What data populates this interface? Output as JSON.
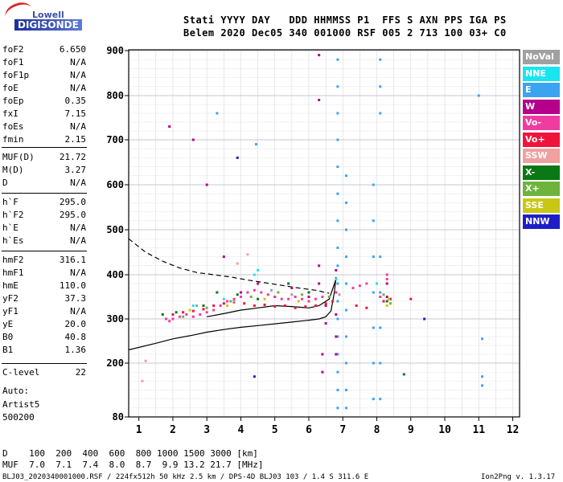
{
  "logo": {
    "top": "Lowell",
    "bottom": "DIGISONDE"
  },
  "header": {
    "line1": "Stati YYYY DAY   DDD HHMMSS P1  FFS S AXN PPS IGA PS",
    "line2": "Belem 2020 Dec05 340 001000 RSF 005 2 713 100 03+ C0"
  },
  "params": [
    {
      "k": "foF2",
      "v": "6.650"
    },
    {
      "k": "foF1",
      "v": "N/A"
    },
    {
      "k": "foF1p",
      "v": "N/A"
    },
    {
      "k": "foE",
      "v": "N/A"
    },
    {
      "k": "foEp",
      "v": "0.35"
    },
    {
      "k": "fxI",
      "v": "7.15"
    },
    {
      "k": "foEs",
      "v": "N/A"
    },
    {
      "k": "fmin",
      "v": "2.15"
    },
    {
      "k": "MUF(D)",
      "v": "21.72"
    },
    {
      "k": "M(D)",
      "v": "3.27"
    },
    {
      "k": "D",
      "v": "N/A"
    },
    {
      "k": "h`F",
      "v": "295.0"
    },
    {
      "k": "h`F2",
      "v": "295.0"
    },
    {
      "k": "h`E",
      "v": "N/A"
    },
    {
      "k": "h`Es",
      "v": "N/A"
    },
    {
      "k": "hmF2",
      "v": "316.1"
    },
    {
      "k": "hmF1",
      "v": "N/A"
    },
    {
      "k": "hmE",
      "v": "110.0"
    },
    {
      "k": "yF2",
      "v": "37.3"
    },
    {
      "k": "yF1",
      "v": "N/A"
    },
    {
      "k": "yE",
      "v": "20.0"
    },
    {
      "k": "B0",
      "v": "40.8"
    },
    {
      "k": "B1",
      "v": "1.36"
    },
    {
      "k": "C-level",
      "v": "22"
    }
  ],
  "auto": {
    "line1": "Auto:",
    "line2": "Artist5",
    "line3": "500200"
  },
  "legend": [
    {
      "label": "NoVal",
      "color": "#a0a0a0"
    },
    {
      "label": "NNE",
      "color": "#19e5f0"
    },
    {
      "label": "E",
      "color": "#3ba4f0"
    },
    {
      "label": "W",
      "color": "#b4008c"
    },
    {
      "label": "Vo-",
      "color": "#f03ca0"
    },
    {
      "label": "Vo+",
      "color": "#f0143c"
    },
    {
      "label": "SSW",
      "color": "#f0a0a0"
    },
    {
      "label": "X-",
      "color": "#0a7814"
    },
    {
      "label": "X+",
      "color": "#6eb43c"
    },
    {
      "label": "SSE",
      "color": "#c8c814"
    },
    {
      "label": "NNW",
      "color": "#1e1ec8"
    }
  ],
  "footer": {
    "d_line": "D    100  200  400  600  800 1000 1500 3000 [km]",
    "muf_line": "MUF  7.0  7.1  7.4  8.0  8.7  9.9 13.2 21.7 [MHz]",
    "file_line": "BLJ03_2020340001000.RSF / 224fx512h 50 kHz 2.5 km / DPS-4D BLJ03 103 / 1.4 S 311.6 E",
    "version": "Ion2Png v. 1.3.17"
  },
  "chart_data": {
    "type": "scatter",
    "xlim": [
      0.7,
      12.2
    ],
    "ylim": [
      80,
      905
    ],
    "xticks": [
      1,
      2,
      3,
      4,
      5,
      6,
      7,
      8,
      9,
      10,
      11,
      12
    ],
    "yticks": [
      80,
      200,
      300,
      400,
      500,
      600,
      700,
      800,
      900
    ],
    "grid": true,
    "series": [
      {
        "name": "E",
        "color": "#3ba4f0",
        "points": [
          [
            6.85,
            880
          ],
          [
            6.85,
            820
          ],
          [
            6.85,
            760
          ],
          [
            6.85,
            700
          ],
          [
            6.85,
            640
          ],
          [
            6.85,
            580
          ],
          [
            6.85,
            520
          ],
          [
            6.85,
            460
          ],
          [
            6.85,
            420
          ],
          [
            6.85,
            380
          ],
          [
            6.85,
            340
          ],
          [
            6.85,
            300
          ],
          [
            6.85,
            260
          ],
          [
            6.85,
            220
          ],
          [
            6.85,
            180
          ],
          [
            6.85,
            140
          ],
          [
            6.85,
            100
          ],
          [
            7.1,
            620
          ],
          [
            7.1,
            560
          ],
          [
            7.1,
            500
          ],
          [
            7.1,
            440
          ],
          [
            7.1,
            380
          ],
          [
            7.1,
            320
          ],
          [
            7.1,
            260
          ],
          [
            7.1,
            200
          ],
          [
            7.1,
            140
          ],
          [
            7.1,
            100
          ],
          [
            7.9,
            600
          ],
          [
            7.9,
            520
          ],
          [
            7.9,
            440
          ],
          [
            7.9,
            360
          ],
          [
            7.9,
            280
          ],
          [
            7.9,
            200
          ],
          [
            7.9,
            120
          ],
          [
            8.1,
            880
          ],
          [
            8.1,
            820
          ],
          [
            8.1,
            760
          ],
          [
            8.1,
            440
          ],
          [
            8.1,
            360
          ],
          [
            8.1,
            280
          ],
          [
            8.1,
            200
          ],
          [
            8.1,
            120
          ],
          [
            11.0,
            800
          ],
          [
            11.1,
            255
          ],
          [
            11.1,
            170
          ],
          [
            11.1,
            150
          ],
          [
            4.45,
            690
          ],
          [
            3.3,
            760
          ]
        ]
      },
      {
        "name": "W",
        "color": "#b4008c",
        "points": [
          [
            6.3,
            890
          ],
          [
            6.3,
            790
          ],
          [
            6.3,
            420
          ],
          [
            6.3,
            380
          ],
          [
            6.5,
            330
          ],
          [
            6.5,
            290
          ],
          [
            6.8,
            410
          ],
          [
            6.8,
            360
          ],
          [
            6.8,
            310
          ],
          [
            6.8,
            260
          ],
          [
            6.8,
            220
          ],
          [
            1.9,
            730
          ],
          [
            2.6,
            700
          ],
          [
            3.0,
            600
          ],
          [
            3.5,
            440
          ],
          [
            4.0,
            360
          ],
          [
            4.5,
            380
          ],
          [
            5.0,
            350
          ],
          [
            5.5,
            370
          ],
          [
            6.0,
            350
          ],
          [
            8.3,
            380
          ],
          [
            8.3,
            350
          ],
          [
            6.4,
            220
          ],
          [
            6.4,
            180
          ]
        ]
      },
      {
        "name": "Vo-",
        "color": "#f03ca0",
        "points": [
          [
            1.8,
            300
          ],
          [
            1.9,
            295
          ],
          [
            2.0,
            300
          ],
          [
            2.2,
            305
          ],
          [
            2.4,
            310
          ],
          [
            2.6,
            305
          ],
          [
            2.8,
            310
          ],
          [
            3.0,
            315
          ],
          [
            3.2,
            320
          ],
          [
            3.4,
            330
          ],
          [
            3.6,
            340
          ],
          [
            3.8,
            345
          ],
          [
            4.0,
            350
          ],
          [
            4.2,
            360
          ],
          [
            4.4,
            365
          ],
          [
            4.6,
            360
          ],
          [
            4.8,
            355
          ],
          [
            5.0,
            350
          ],
          [
            5.2,
            345
          ],
          [
            5.4,
            345
          ],
          [
            5.6,
            350
          ],
          [
            5.8,
            345
          ],
          [
            6.0,
            340
          ],
          [
            6.2,
            345
          ],
          [
            6.4,
            350
          ],
          [
            6.6,
            350
          ],
          [
            6.8,
            360
          ],
          [
            7.3,
            370
          ],
          [
            7.5,
            375
          ],
          [
            7.7,
            380
          ],
          [
            8.3,
            390
          ],
          [
            8.1,
            350
          ],
          [
            8.3,
            400
          ]
        ]
      },
      {
        "name": "Vo+",
        "color": "#f0143c",
        "points": [
          [
            2.0,
            310
          ],
          [
            2.3,
            315
          ],
          [
            2.6,
            318
          ],
          [
            2.9,
            322
          ],
          [
            3.2,
            330
          ],
          [
            3.5,
            335
          ],
          [
            3.8,
            338
          ],
          [
            4.1,
            335
          ],
          [
            4.4,
            330
          ],
          [
            4.7,
            332
          ],
          [
            5.0,
            328
          ],
          [
            5.3,
            330
          ],
          [
            5.6,
            325
          ],
          [
            5.9,
            328
          ],
          [
            6.2,
            330
          ],
          [
            6.5,
            335
          ],
          [
            6.7,
            340
          ],
          [
            7.4,
            330
          ],
          [
            7.7,
            325
          ],
          [
            8.2,
            340
          ],
          [
            8.4,
            345
          ],
          [
            9.0,
            345
          ]
        ]
      },
      {
        "name": "X-",
        "color": "#0a7814",
        "points": [
          [
            1.7,
            310
          ],
          [
            2.1,
            315
          ],
          [
            2.9,
            330
          ],
          [
            3.3,
            360
          ],
          [
            3.9,
            355
          ],
          [
            4.5,
            345
          ],
          [
            5.4,
            380
          ],
          [
            6.0,
            360
          ],
          [
            8.3,
            340
          ],
          [
            8.8,
            175
          ]
        ]
      },
      {
        "name": "X+",
        "color": "#6eb43c",
        "points": [
          [
            2.3,
            305
          ],
          [
            3.0,
            325
          ],
          [
            3.7,
            340
          ],
          [
            4.3,
            350
          ],
          [
            5.1,
            360
          ],
          [
            5.8,
            355
          ],
          [
            6.6,
            350
          ],
          [
            8.2,
            355
          ],
          [
            8.4,
            335
          ]
        ]
      },
      {
        "name": "SSE",
        "color": "#c8c814",
        "points": [
          [
            2.5,
            320
          ],
          [
            3.6,
            330
          ],
          [
            4.7,
            345
          ],
          [
            5.7,
            340
          ],
          [
            8.35,
            345
          ],
          [
            8.3,
            330
          ]
        ]
      },
      {
        "name": "NNE",
        "color": "#19e5f0",
        "points": [
          [
            2.6,
            330
          ],
          [
            3.5,
            345
          ],
          [
            4.4,
            400
          ],
          [
            4.5,
            410
          ],
          [
            6.8,
            390
          ],
          [
            8.0,
            380
          ]
        ]
      },
      {
        "name": "NNW",
        "color": "#1e1ec8",
        "points": [
          [
            9.4,
            300
          ],
          [
            3.9,
            660
          ],
          [
            4.4,
            170
          ]
        ]
      },
      {
        "name": "SSW",
        "color": "#f0a0a0",
        "points": [
          [
            1.1,
            160
          ],
          [
            1.2,
            205
          ],
          [
            3.9,
            425
          ],
          [
            4.2,
            445
          ]
        ]
      },
      {
        "name": "NoVal",
        "color": "#a0a0a0",
        "points": [
          [
            2.7,
            330
          ],
          [
            3.8,
            340
          ],
          [
            5.5,
            355
          ],
          [
            4.9,
            365
          ],
          [
            6.9,
            355
          ]
        ]
      }
    ],
    "curves": [
      {
        "name": "profile-solid",
        "style": "solid",
        "points": [
          [
            0.7,
            230
          ],
          [
            1.5,
            245
          ],
          [
            2.0,
            255
          ],
          [
            2.5,
            262
          ],
          [
            3.0,
            270
          ],
          [
            3.5,
            276
          ],
          [
            4.0,
            281
          ],
          [
            4.5,
            285
          ],
          [
            5.0,
            289
          ],
          [
            5.5,
            293
          ],
          [
            6.0,
            297
          ],
          [
            6.3,
            300
          ],
          [
            6.5,
            305
          ],
          [
            6.65,
            318
          ],
          [
            6.75,
            360
          ],
          [
            6.8,
            395
          ]
        ]
      },
      {
        "name": "trace-solid-upper",
        "style": "solid",
        "points": [
          [
            3.0,
            305
          ],
          [
            3.5,
            312
          ],
          [
            4.0,
            320
          ],
          [
            4.5,
            325
          ],
          [
            5.0,
            330
          ],
          [
            5.5,
            328
          ],
          [
            6.0,
            325
          ],
          [
            6.3,
            330
          ],
          [
            6.6,
            345
          ],
          [
            6.8,
            390
          ]
        ]
      },
      {
        "name": "trace-dashed",
        "style": "dashed",
        "points": [
          [
            0.7,
            480
          ],
          [
            1.2,
            450
          ],
          [
            1.7,
            430
          ],
          [
            2.2,
            415
          ],
          [
            2.7,
            405
          ],
          [
            3.2,
            400
          ],
          [
            3.7,
            395
          ],
          [
            4.2,
            388
          ],
          [
            4.7,
            382
          ],
          [
            5.2,
            376
          ],
          [
            5.7,
            370
          ],
          [
            6.2,
            365
          ],
          [
            6.6,
            358
          ]
        ]
      }
    ]
  }
}
